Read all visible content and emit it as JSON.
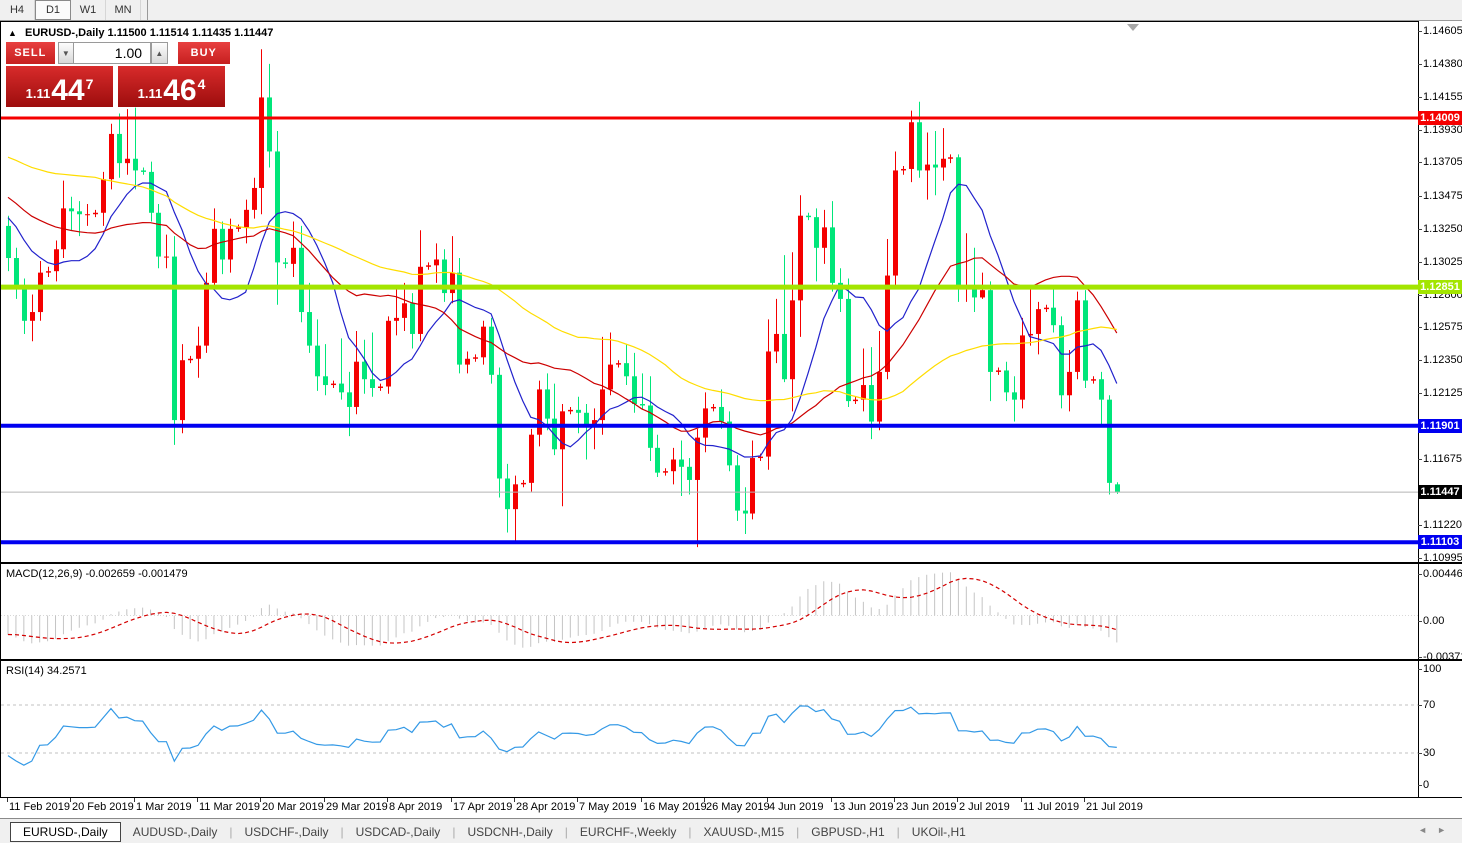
{
  "toolbar": {
    "timeframes": [
      {
        "label": "H4",
        "active": false
      },
      {
        "label": "D1",
        "active": true
      },
      {
        "label": "W1",
        "active": false
      },
      {
        "label": "MN",
        "active": false
      }
    ]
  },
  "chart": {
    "collapse_arrow": "▲",
    "symbol_title": "EURUSD-,Daily",
    "ohlc_text": "1.11500 1.11514 1.11435 1.11447",
    "trade_panel": {
      "sell_label": "SELL",
      "buy_label": "BUY",
      "volume": "1.00",
      "spinner_down": "▼",
      "spinner_up": "▲",
      "sell_price": {
        "prefix": "1.11",
        "big": "44",
        "sup": "7"
      },
      "buy_price": {
        "prefix": "1.11",
        "big": "46",
        "sup": "4"
      }
    }
  },
  "tabs": {
    "items": [
      {
        "label": "EURUSD-,Daily",
        "active": true
      },
      {
        "label": "AUDUSD-,Daily",
        "active": false
      },
      {
        "label": "USDCHF-,Daily",
        "active": false
      },
      {
        "label": "USDCAD-,Daily",
        "active": false
      },
      {
        "label": "USDCNH-,Daily",
        "active": false
      },
      {
        "label": "EURCHF-,Weekly",
        "active": false
      },
      {
        "label": "XAUUSD-,M15",
        "active": false
      },
      {
        "label": "GBPUSD-,H1",
        "active": false
      },
      {
        "label": "UKOil-,H1",
        "active": false
      }
    ],
    "scroll_left_icon": "◄",
    "scroll_right_icon": "►"
  },
  "chart_data": {
    "type": "candlestick",
    "symbol": "EURUSD",
    "timeframe": "Daily",
    "title": "EURUSD-,Daily  1.11500 1.11514 1.11435 1.11447",
    "candle_colors": {
      "up": "#f40000",
      "down": "#00e67a"
    },
    "price_axis_ticks": [
      "1.14605",
      "1.14380",
      "1.14155",
      "1.13930",
      "1.13705",
      "1.13475",
      "1.13250",
      "1.13025",
      "1.12800",
      "1.12575",
      "1.12350",
      "1.12125",
      "1.11675",
      "1.11220",
      "1.10995"
    ],
    "levels": [
      {
        "price": 1.14009,
        "label": "1.14009",
        "color": "#f50000",
        "width": 3,
        "text_color": "#ffffff"
      },
      {
        "price": 1.12851,
        "label": "1.12851",
        "color": "#a3e500",
        "width": 5,
        "text_color": "#ffffff"
      },
      {
        "price": 1.11901,
        "label": "1.11901",
        "color": "#0000f0",
        "width": 4,
        "text_color": "#ffffff"
      },
      {
        "price": 1.11103,
        "label": "1.11103",
        "color": "#0000f0",
        "width": 4,
        "text_color": "#ffffff"
      }
    ],
    "current_price": {
      "value": 1.11447,
      "label": "1.11447",
      "line_color": "#b4b4b4",
      "badge_bg": "#000000",
      "text_color": "#ffffff"
    },
    "moving_averages": [
      {
        "period": 10,
        "color": "#2222cc"
      },
      {
        "period": 24,
        "color": "#cc0000"
      },
      {
        "period": 52,
        "color": "#ffdd00"
      }
    ],
    "x_tick_labels": [
      {
        "i": 0,
        "label": "11 Feb 2019"
      },
      {
        "i": 8,
        "label": "20 Feb 2019"
      },
      {
        "i": 16,
        "label": "1 Mar 2019"
      },
      {
        "i": 24,
        "label": "11 Mar 2019"
      },
      {
        "i": 32,
        "label": "20 Mar 2019"
      },
      {
        "i": 40,
        "label": "29 Mar 2019"
      },
      {
        "i": 48,
        "label": "8 Apr 2019"
      },
      {
        "i": 56,
        "label": "17 Apr 2019"
      },
      {
        "i": 64,
        "label": "28 Apr 2019"
      },
      {
        "i": 72,
        "label": "7 May 2019"
      },
      {
        "i": 80,
        "label": "16 May 2019"
      },
      {
        "i": 88,
        "label": "26 May 2019"
      },
      {
        "i": 96,
        "label": "4 Jun 2019"
      },
      {
        "i": 104,
        "label": "13 Jun 2019"
      },
      {
        "i": 112,
        "label": "23 Jun 2019"
      },
      {
        "i": 120,
        "label": "2 Jul 2019"
      },
      {
        "i": 128,
        "label": "11 Jul 2019"
      },
      {
        "i": 136,
        "label": "21 Jul 2019"
      }
    ],
    "warmup_closes": [
      1.1442,
      1.1435,
      1.1428,
      1.142,
      1.1415,
      1.1422,
      1.143,
      1.1426,
      1.1418,
      1.141,
      1.1402,
      1.1395,
      1.1388,
      1.1395,
      1.1405,
      1.1398,
      1.139,
      1.1382,
      1.1375,
      1.1368,
      1.136,
      1.1355,
      1.1362,
      1.137,
      1.1365,
      1.1357,
      1.135,
      1.1343,
      1.1336,
      1.133,
      1.1338,
      1.1346,
      1.1352,
      1.1345,
      1.1338,
      1.1332,
      1.1326,
      1.132,
      1.1328,
      1.1335
    ],
    "ohlc": [
      [
        1.1327,
        1.1334,
        1.1296,
        1.1305
      ],
      [
        1.1305,
        1.1312,
        1.1277,
        1.1284
      ],
      [
        1.1284,
        1.1291,
        1.1253,
        1.1262
      ],
      [
        1.1262,
        1.128,
        1.1248,
        1.1268
      ],
      [
        1.1268,
        1.1303,
        1.1262,
        1.1295
      ],
      [
        1.1295,
        1.1299,
        1.1292,
        1.1296
      ],
      [
        1.1296,
        1.1317,
        1.1289,
        1.1311
      ],
      [
        1.1311,
        1.1358,
        1.1305,
        1.1339
      ],
      [
        1.1339,
        1.1347,
        1.1324,
        1.1337
      ],
      [
        1.1337,
        1.1344,
        1.132,
        1.1335
      ],
      [
        1.1335,
        1.1342,
        1.1327,
        1.1335
      ],
      [
        1.1335,
        1.1338,
        1.1333,
        1.1336
      ],
      [
        1.1336,
        1.1364,
        1.1327,
        1.1359
      ],
      [
        1.1359,
        1.1397,
        1.1352,
        1.139
      ],
      [
        1.139,
        1.1404,
        1.136,
        1.137
      ],
      [
        1.137,
        1.1407,
        1.1362,
        1.1373
      ],
      [
        1.1373,
        1.1408,
        1.1352,
        1.1365
      ],
      [
        1.1365,
        1.1367,
        1.1362,
        1.1364
      ],
      [
        1.1364,
        1.1371,
        1.133,
        1.1336
      ],
      [
        1.1336,
        1.1342,
        1.1298,
        1.1306
      ],
      [
        1.1306,
        1.1321,
        1.1298,
        1.1306
      ],
      [
        1.1306,
        1.132,
        1.1177,
        1.1194
      ],
      [
        1.1194,
        1.1246,
        1.1185,
        1.1235
      ],
      [
        1.1235,
        1.1238,
        1.1233,
        1.1236
      ],
      [
        1.1236,
        1.1258,
        1.1223,
        1.1245
      ],
      [
        1.1245,
        1.1295,
        1.124,
        1.1288
      ],
      [
        1.1288,
        1.1339,
        1.1283,
        1.1325
      ],
      [
        1.1325,
        1.133,
        1.1294,
        1.1304
      ],
      [
        1.1304,
        1.1332,
        1.1295,
        1.1325
      ],
      [
        1.1325,
        1.1328,
        1.1323,
        1.1326
      ],
      [
        1.1326,
        1.1345,
        1.1315,
        1.1338
      ],
      [
        1.1338,
        1.136,
        1.1332,
        1.1353
      ],
      [
        1.1353,
        1.1448,
        1.1335,
        1.1415
      ],
      [
        1.1415,
        1.1438,
        1.1367,
        1.1378
      ],
      [
        1.1378,
        1.1392,
        1.1273,
        1.1302
      ],
      [
        1.1302,
        1.1305,
        1.1298,
        1.1301
      ],
      [
        1.1301,
        1.133,
        1.1292,
        1.1312
      ],
      [
        1.1312,
        1.1327,
        1.1261,
        1.1268
      ],
      [
        1.1268,
        1.1288,
        1.124,
        1.1245
      ],
      [
        1.1245,
        1.1263,
        1.1214,
        1.1224
      ],
      [
        1.1224,
        1.1246,
        1.1211,
        1.1218
      ],
      [
        1.1218,
        1.1221,
        1.1216,
        1.1219
      ],
      [
        1.1219,
        1.125,
        1.1208,
        1.1213
      ],
      [
        1.1213,
        1.1227,
        1.1183,
        1.1203
      ],
      [
        1.1203,
        1.1255,
        1.1198,
        1.1234
      ],
      [
        1.1234,
        1.1249,
        1.1212,
        1.1222
      ],
      [
        1.1222,
        1.1254,
        1.121,
        1.1216
      ],
      [
        1.1216,
        1.1219,
        1.1214,
        1.1217
      ],
      [
        1.1217,
        1.1265,
        1.1212,
        1.1262
      ],
      [
        1.1262,
        1.1285,
        1.1252,
        1.1264
      ],
      [
        1.1264,
        1.1288,
        1.1255,
        1.1274
      ],
      [
        1.1274,
        1.1281,
        1.1243,
        1.1253
      ],
      [
        1.1253,
        1.1324,
        1.1248,
        1.1299
      ],
      [
        1.1299,
        1.1302,
        1.1297,
        1.13
      ],
      [
        1.13,
        1.1315,
        1.1288,
        1.1304
      ],
      [
        1.1304,
        1.1311,
        1.1275,
        1.1281
      ],
      [
        1.1281,
        1.132,
        1.1274,
        1.1295
      ],
      [
        1.1295,
        1.1305,
        1.1226,
        1.1232
      ],
      [
        1.1232,
        1.1241,
        1.1226,
        1.1236
      ],
      [
        1.1236,
        1.1239,
        1.1234,
        1.1237
      ],
      [
        1.1237,
        1.1262,
        1.1232,
        1.1258
      ],
      [
        1.1258,
        1.1264,
        1.1219,
        1.1225
      ],
      [
        1.1225,
        1.123,
        1.1141,
        1.1154
      ],
      [
        1.1154,
        1.1164,
        1.1117,
        1.1133
      ],
      [
        1.1133,
        1.1156,
        1.111,
        1.115
      ],
      [
        1.115,
        1.1153,
        1.1148,
        1.1151
      ],
      [
        1.1151,
        1.1188,
        1.1145,
        1.1184
      ],
      [
        1.1184,
        1.1221,
        1.1176,
        1.1215
      ],
      [
        1.1215,
        1.1226,
        1.1187,
        1.1195
      ],
      [
        1.1195,
        1.1219,
        1.117,
        1.1174
      ],
      [
        1.1174,
        1.1205,
        1.1135,
        1.12
      ],
      [
        1.12,
        1.1203,
        1.1198,
        1.1201
      ],
      [
        1.1201,
        1.121,
        1.1185,
        1.1199
      ],
      [
        1.1199,
        1.1205,
        1.1167,
        1.119
      ],
      [
        1.119,
        1.1202,
        1.1174,
        1.1194
      ],
      [
        1.1194,
        1.1251,
        1.1184,
        1.1215
      ],
      [
        1.1215,
        1.1254,
        1.1211,
        1.1232
      ],
      [
        1.1232,
        1.1235,
        1.123,
        1.1233
      ],
      [
        1.1233,
        1.1246,
        1.1218,
        1.1224
      ],
      [
        1.1224,
        1.124,
        1.1199,
        1.1205
      ],
      [
        1.1205,
        1.1226,
        1.1201,
        1.1204
      ],
      [
        1.1204,
        1.1224,
        1.1166,
        1.1175
      ],
      [
        1.1175,
        1.1184,
        1.1155,
        1.1158
      ],
      [
        1.1158,
        1.1161,
        1.1156,
        1.1159
      ],
      [
        1.1159,
        1.1175,
        1.115,
        1.1167
      ],
      [
        1.1167,
        1.118,
        1.1142,
        1.1162
      ],
      [
        1.1162,
        1.1168,
        1.1143,
        1.1153
      ],
      [
        1.1153,
        1.1188,
        1.1107,
        1.1182
      ],
      [
        1.1182,
        1.1213,
        1.1172,
        1.1202
      ],
      [
        1.1202,
        1.1205,
        1.12,
        1.1203
      ],
      [
        1.1203,
        1.1215,
        1.1188,
        1.1193
      ],
      [
        1.1193,
        1.12,
        1.1159,
        1.1163
      ],
      [
        1.1163,
        1.117,
        1.1125,
        1.1132
      ],
      [
        1.1132,
        1.1148,
        1.1116,
        1.113
      ],
      [
        1.113,
        1.118,
        1.1126,
        1.1168
      ],
      [
        1.1168,
        1.1171,
        1.1166,
        1.1169
      ],
      [
        1.1169,
        1.1263,
        1.116,
        1.1241
      ],
      [
        1.1241,
        1.1277,
        1.1233,
        1.1253
      ],
      [
        1.1253,
        1.1307,
        1.122,
        1.1222
      ],
      [
        1.1222,
        1.1309,
        1.12,
        1.1276
      ],
      [
        1.1276,
        1.1348,
        1.1251,
        1.1334
      ],
      [
        1.1334,
        1.1336,
        1.1331,
        1.1333
      ],
      [
        1.1333,
        1.1339,
        1.1289,
        1.1312
      ],
      [
        1.1312,
        1.1338,
        1.1301,
        1.1326
      ],
      [
        1.1326,
        1.1344,
        1.1282,
        1.1288
      ],
      [
        1.1288,
        1.1298,
        1.1268,
        1.1277
      ],
      [
        1.1277,
        1.1291,
        1.1203,
        1.1207
      ],
      [
        1.1207,
        1.121,
        1.1205,
        1.1208
      ],
      [
        1.1208,
        1.1243,
        1.12,
        1.1218
      ],
      [
        1.1218,
        1.1244,
        1.1181,
        1.1193
      ],
      [
        1.1193,
        1.1255,
        1.1187,
        1.1227
      ],
      [
        1.1227,
        1.1318,
        1.1222,
        1.1293
      ],
      [
        1.1293,
        1.1378,
        1.1285,
        1.1365
      ],
      [
        1.1365,
        1.1368,
        1.1362,
        1.1366
      ],
      [
        1.1366,
        1.1406,
        1.1357,
        1.1398
      ],
      [
        1.1398,
        1.1412,
        1.136,
        1.1365
      ],
      [
        1.1365,
        1.1391,
        1.1345,
        1.1369
      ],
      [
        1.1369,
        1.1392,
        1.1348,
        1.1367
      ],
      [
        1.1367,
        1.1394,
        1.1358,
        1.1373
      ],
      [
        1.1373,
        1.1376,
        1.137,
        1.1374
      ],
      [
        1.1374,
        1.1376,
        1.1275,
        1.1285
      ],
      [
        1.1285,
        1.1322,
        1.1275,
        1.1285
      ],
      [
        1.1285,
        1.1312,
        1.1268,
        1.1278
      ],
      [
        1.1278,
        1.1295,
        1.1277,
        1.1283
      ],
      [
        1.1283,
        1.1289,
        1.1207,
        1.1227
      ],
      [
        1.1227,
        1.123,
        1.1225,
        1.1228
      ],
      [
        1.1228,
        1.1234,
        1.1207,
        1.1213
      ],
      [
        1.1213,
        1.1224,
        1.1193,
        1.1208
      ],
      [
        1.1208,
        1.1264,
        1.1202,
        1.1252
      ],
      [
        1.1252,
        1.1286,
        1.1245,
        1.1253
      ],
      [
        1.1253,
        1.1275,
        1.1239,
        1.127
      ],
      [
        1.127,
        1.1273,
        1.1268,
        1.1271
      ],
      [
        1.1271,
        1.1284,
        1.1254,
        1.1259
      ],
      [
        1.1259,
        1.1265,
        1.1202,
        1.1211
      ],
      [
        1.1211,
        1.1242,
        1.12,
        1.1227
      ],
      [
        1.1227,
        1.1282,
        1.1222,
        1.1276
      ],
      [
        1.1276,
        1.1283,
        1.1216,
        1.1221
      ],
      [
        1.1221,
        1.1224,
        1.1219,
        1.1222
      ],
      [
        1.1222,
        1.1227,
        1.1189,
        1.1208
      ],
      [
        1.1208,
        1.1211,
        1.1143,
        1.1151
      ],
      [
        1.115,
        1.11514,
        1.11435,
        1.11447
      ]
    ],
    "macd": {
      "label": "MACD(12,26,9) -0.002659 -0.001479",
      "params": [
        12,
        26,
        9
      ],
      "value": -0.002659,
      "signal_value": -0.001479,
      "axis_labels": [
        "0.004465",
        "0.00",
        "-0.003715"
      ],
      "range": [
        -0.003715,
        0.004465
      ],
      "hist_color": "#c4c4c4",
      "signal_color": "#d40000"
    },
    "rsi": {
      "label": "RSI(14) 34.2571",
      "period": 14,
      "value": 34.2571,
      "axis_labels": [
        "100",
        "70",
        "30",
        "0"
      ],
      "level_lines": [
        70,
        30
      ],
      "color": "#3399e6"
    }
  }
}
